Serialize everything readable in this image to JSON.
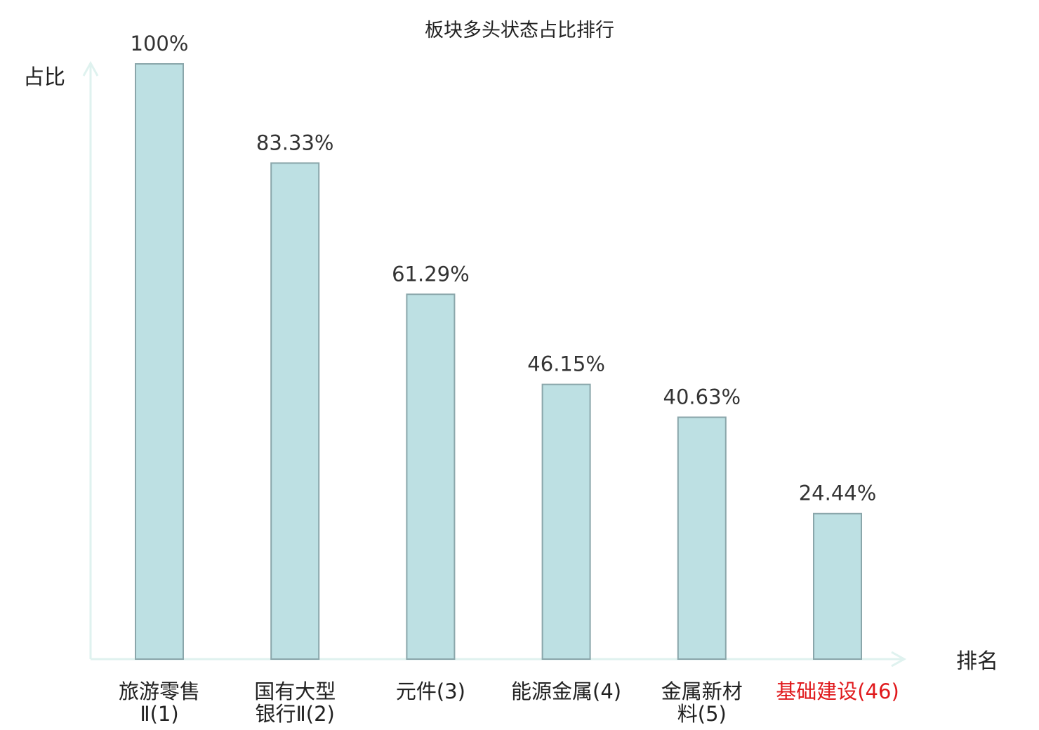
{
  "chart_data": {
    "type": "bar",
    "title": "板块多头状态占比排行",
    "ylabel": "占比",
    "xlabel": "排名",
    "ylim": [
      0,
      100
    ],
    "grid": false,
    "categories": [
      {
        "lines": [
          "旅游零售",
          "Ⅱ(1)"
        ],
        "highlight": false
      },
      {
        "lines": [
          "国有大型",
          "银行Ⅱ(2)"
        ],
        "highlight": false
      },
      {
        "lines": [
          "元件(3)"
        ],
        "highlight": false
      },
      {
        "lines": [
          "能源金属(4)"
        ],
        "highlight": false
      },
      {
        "lines": [
          "金属新材",
          "料(5)"
        ],
        "highlight": false
      },
      {
        "lines": [
          "基础建设(46)"
        ],
        "highlight": true
      }
    ],
    "values": [
      100,
      83.33,
      61.29,
      46.15,
      40.63,
      24.44
    ],
    "value_labels": [
      "100%",
      "83.33%",
      "61.29%",
      "46.15%",
      "40.63%",
      "24.44%"
    ]
  },
  "colors": {
    "bar_fill": "#bde0e3",
    "bar_stroke": "#8aa6aa",
    "axis": "#dff2ef",
    "highlight": "#e0191c"
  }
}
